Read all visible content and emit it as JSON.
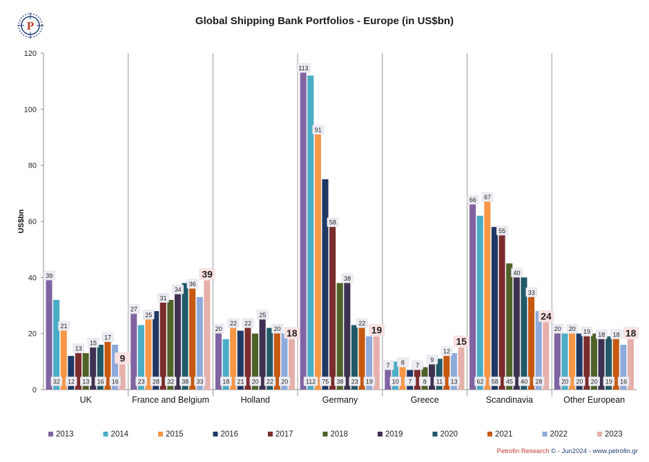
{
  "title": "Global Shipping Bank Portfolios - Europe (in US$bn)",
  "footer": {
    "brand": "Petrofin Research",
    "copyright": " © - Jun2024 - ",
    "url": "www.petrofin.gr"
  },
  "logo": {
    "letter": "P"
  },
  "chart_data": {
    "type": "bar",
    "title": "Global Shipping Bank Portfolios - Europe (in US$bn)",
    "xlabel": "",
    "ylabel": "US$bn",
    "ylim": [
      0,
      120
    ],
    "yticks": [
      0,
      20,
      40,
      60,
      80,
      100,
      120
    ],
    "grid": false,
    "legend": "bottom",
    "categories": [
      "UK",
      "France and Belgium",
      "Holland",
      "Germany",
      "Greece",
      "Scandinavia",
      "Other European"
    ],
    "series": [
      {
        "name": "2013",
        "color": "#8064a2",
        "values": [
          39,
          27,
          20,
          113,
          7,
          66,
          20
        ]
      },
      {
        "name": "2014",
        "color": "#4bacc6",
        "values": [
          32,
          23,
          18,
          112,
          10,
          62,
          20
        ]
      },
      {
        "name": "2015",
        "color": "#f79646",
        "values": [
          21,
          25,
          22,
          91,
          8,
          67,
          20
        ]
      },
      {
        "name": "2016",
        "color": "#1f3864",
        "values": [
          12,
          28,
          21,
          75,
          7,
          58,
          20
        ]
      },
      {
        "name": "2017",
        "color": "#7b2c2c",
        "values": [
          13,
          31,
          22,
          58,
          7,
          55,
          19
        ]
      },
      {
        "name": "2018",
        "color": "#4f6228",
        "values": [
          13,
          32,
          20,
          38,
          8,
          45,
          20
        ]
      },
      {
        "name": "2019",
        "color": "#3f3151",
        "values": [
          15,
          34,
          25,
          38,
          9,
          40,
          18
        ]
      },
      {
        "name": "2020",
        "color": "#215968",
        "values": [
          16,
          38,
          22,
          23,
          11,
          40,
          19
        ]
      },
      {
        "name": "2021",
        "color": "#c65911",
        "values": [
          17,
          36,
          20,
          22,
          12,
          33,
          18
        ]
      },
      {
        "name": "2022",
        "color": "#8eaadb",
        "values": [
          16,
          33,
          20,
          19,
          13,
          28,
          16
        ]
      },
      {
        "name": "2023",
        "color": "#e6b0aa",
        "values": [
          9,
          39,
          18,
          19,
          15,
          24,
          18
        ]
      }
    ]
  }
}
